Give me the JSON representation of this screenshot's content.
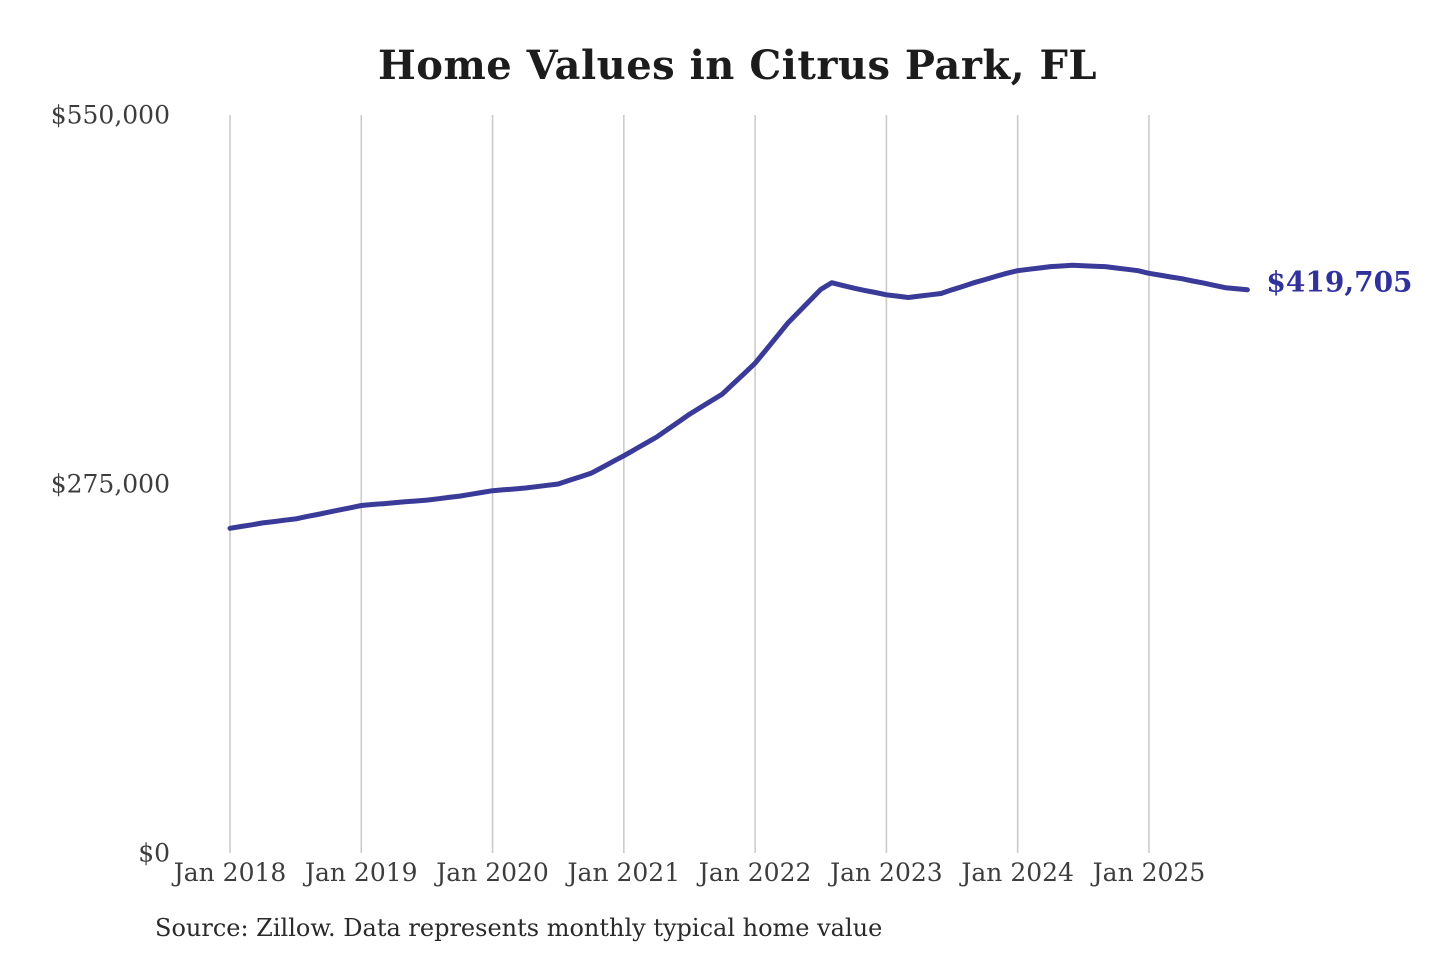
{
  "page": {
    "title": "Home Values in Citrus Park, FL",
    "source_note": "Source: Zillow. Data represents monthly typical home value"
  },
  "colors": {
    "line": "#3a3a99",
    "end_label": "#31319b",
    "grid": "#cbcbcb",
    "axis_text": "#3d3d3d",
    "title_text": "#1c1c1c"
  },
  "chart_data": {
    "type": "line",
    "title": "Home Values in Citrus Park, FL",
    "xlabel": "",
    "ylabel": "",
    "ylim": [
      0,
      550000
    ],
    "y_ticks": [
      0,
      275000,
      550000
    ],
    "y_tick_labels": [
      "$0",
      "$275,000",
      "$550,000"
    ],
    "x_tick_labels": [
      "Jan 2018",
      "Jan 2019",
      "Jan 2020",
      "Jan 2021",
      "Jan 2022",
      "Jan 2023",
      "Jan 2024",
      "Jan 2025"
    ],
    "grid": "vertical-only",
    "legend": "none",
    "frequency": "monthly",
    "x_start": "2018-01",
    "x_end": "2025-10",
    "annotation": {
      "text": "$419,705",
      "value": 419705,
      "position": "line-end"
    },
    "source": "Source: Zillow. Data represents monthly typical home value",
    "series": [
      {
        "name": "Typical home value",
        "color": "#3a3a99",
        "values": [
          242000,
          243300,
          244600,
          246000,
          247000,
          248000,
          249000,
          250700,
          252300,
          254000,
          255700,
          257300,
          259000,
          259700,
          260300,
          261000,
          261700,
          262300,
          263000,
          264000,
          265000,
          266000,
          267300,
          268700,
          270000,
          270700,
          271300,
          272000,
          273000,
          274000,
          275000,
          277700,
          280300,
          283000,
          287300,
          291700,
          296000,
          300700,
          305300,
          310000,
          315700,
          321300,
          327000,
          332000,
          337000,
          342000,
          349700,
          357300,
          365000,
          375000,
          385000,
          395000,
          403300,
          411700,
          420000,
          425000,
          423000,
          421000,
          419300,
          417700,
          416000,
          415000,
          414000,
          415000,
          416000,
          417000,
          419700,
          422300,
          425000,
          427300,
          429700,
          432000,
          434000,
          435000,
          436000,
          437000,
          437500,
          438000,
          437700,
          437300,
          437000,
          436000,
          435000,
          434000,
          432000,
          430700,
          429300,
          428000,
          426300,
          424700,
          423000,
          421300,
          420500,
          419705
        ]
      }
    ]
  }
}
